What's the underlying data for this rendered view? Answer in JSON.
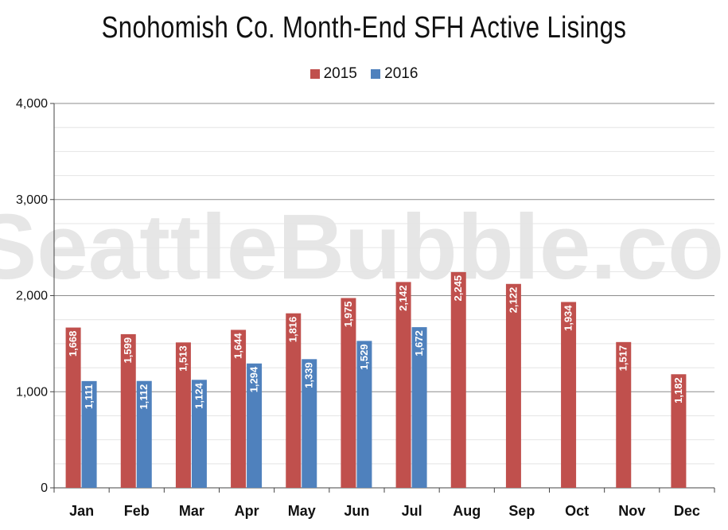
{
  "chart_data": {
    "type": "bar",
    "title": "Snohomish Co. Month-End SFH Active Lisings",
    "watermark": "SeattleBubble.com",
    "categories": [
      "Jan",
      "Feb",
      "Mar",
      "Apr",
      "May",
      "Jun",
      "Jul",
      "Aug",
      "Sep",
      "Oct",
      "Nov",
      "Dec"
    ],
    "series": [
      {
        "name": "2015",
        "color": "#c0504d",
        "values": [
          1668,
          1599,
          1513,
          1644,
          1816,
          1975,
          2142,
          2245,
          2122,
          1934,
          1517,
          1182
        ],
        "labels": [
          "1,668",
          "1,599",
          "1,513",
          "1,644",
          "1,816",
          "1,975",
          "2,142",
          "2,245",
          "2,122",
          "1,934",
          "1,517",
          "1,182"
        ]
      },
      {
        "name": "2016",
        "color": "#4f81bd",
        "values": [
          1111,
          1112,
          1124,
          1294,
          1339,
          1529,
          1672,
          null,
          null,
          null,
          null,
          null
        ],
        "labels": [
          "1,111",
          "1,112",
          "1,124",
          "1,294",
          "1,339",
          "1,529",
          "1,672",
          null,
          null,
          null,
          null,
          null
        ]
      }
    ],
    "yticks": [
      0,
      1000,
      2000,
      3000,
      4000
    ],
    "ytick_labels": [
      "0",
      "1,000",
      "2,000",
      "3,000",
      "4,000"
    ],
    "ylim": [
      0,
      4000
    ],
    "xlabel": "",
    "ylabel": "",
    "legend_position": "top-center",
    "grid": true
  }
}
